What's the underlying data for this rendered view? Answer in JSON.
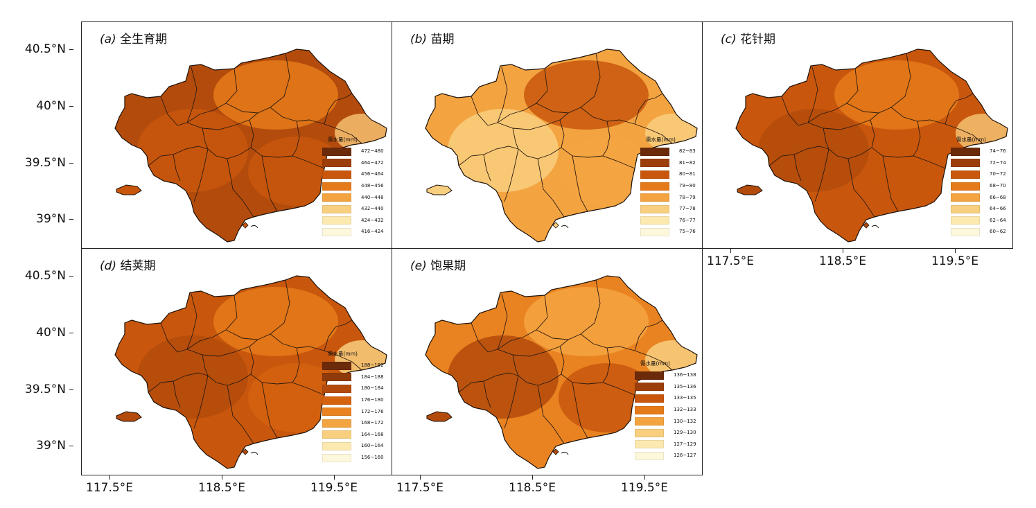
{
  "panels": [
    {
      "id": "a",
      "letter": "(a)",
      "name": "全生育期",
      "legend_title": "需水量(mm)",
      "legend": [
        "472~480",
        "464~472",
        "456~464",
        "448~456",
        "440~448",
        "432~440",
        "424~432",
        "416~424"
      ],
      "legend_colors": [
        "#6b2a09",
        "#9c3e0a",
        "#c8570d",
        "#e57a1a",
        "#f3a441",
        "#f8cf7f",
        "#fbe9b0",
        "#fdf7dc"
      ]
    },
    {
      "id": "b",
      "letter": "(b)",
      "name": "苗期",
      "legend_title": "需水量(mm)",
      "legend": [
        "82~83",
        "81~82",
        "80~81",
        "79~80",
        "78~79",
        "77~78",
        "76~77",
        "75~76"
      ],
      "legend_colors": [
        "#6b2a09",
        "#9c3e0a",
        "#c8570d",
        "#e57a1a",
        "#f3a441",
        "#f8cf7f",
        "#fbe9b0",
        "#fdf7dc"
      ]
    },
    {
      "id": "c",
      "letter": "(c)",
      "name": "花针期",
      "legend_title": "需水量(mm)",
      "legend": [
        "74~76",
        "72~74",
        "70~72",
        "68~70",
        "66~68",
        "64~66",
        "62~64",
        "60~62"
      ],
      "legend_colors": [
        "#6b2a09",
        "#9c3e0a",
        "#c8570d",
        "#e57a1a",
        "#f3a441",
        "#f8cf7f",
        "#fbe9b0",
        "#fdf7dc"
      ]
    },
    {
      "id": "d",
      "letter": "(d)",
      "name": "结荚期",
      "legend_title": "需水量(mm)",
      "legend": [
        "188~192",
        "184~188",
        "180~184",
        "176~180",
        "172~176",
        "168~172",
        "164~168",
        "160~164",
        "156~160"
      ],
      "legend_colors": [
        "#6b2a09",
        "#8f3a0a",
        "#b34b0c",
        "#d5620f",
        "#e98321",
        "#f3a441",
        "#f8cf7f",
        "#fbe9b0",
        "#fdf7dc"
      ]
    },
    {
      "id": "e",
      "letter": "(e)",
      "name": "饱果期",
      "legend_title": "需水量(mm)",
      "legend": [
        "136~138",
        "135~136",
        "133~135",
        "132~133",
        "130~132",
        "129~130",
        "127~129",
        "126~127"
      ],
      "legend_colors": [
        "#6b2a09",
        "#9c3e0a",
        "#c8570d",
        "#e57a1a",
        "#f3a441",
        "#f8cf7f",
        "#fbe9b0",
        "#fdf7dc"
      ]
    }
  ],
  "axes": {
    "latitude_ticks": [
      "40.5°N",
      "40°N",
      "39.5°N",
      "39°N"
    ],
    "longitude_ticks": [
      "117.5°E",
      "118.5°E",
      "119.5°E"
    ]
  },
  "region_colors": {
    "a": [
      "#b34b0c",
      "#c8570d",
      "#e57a1a",
      "#c8570d",
      "#f5c071"
    ],
    "b": [
      "#f3a441",
      "#f8cf7f",
      "#c8570d",
      "#f3a441",
      "#f8cf7f"
    ],
    "c": [
      "#c8570d",
      "#b34b0c",
      "#e57a1a",
      "#c8570d",
      "#f5c071"
    ],
    "d": [
      "#c8570d",
      "#b34b0c",
      "#e57a1a",
      "#d5620f",
      "#f8cf7f"
    ],
    "e": [
      "#e98321",
      "#b34b0c",
      "#f3a441",
      "#c8570d",
      "#f8cf7f"
    ]
  }
}
